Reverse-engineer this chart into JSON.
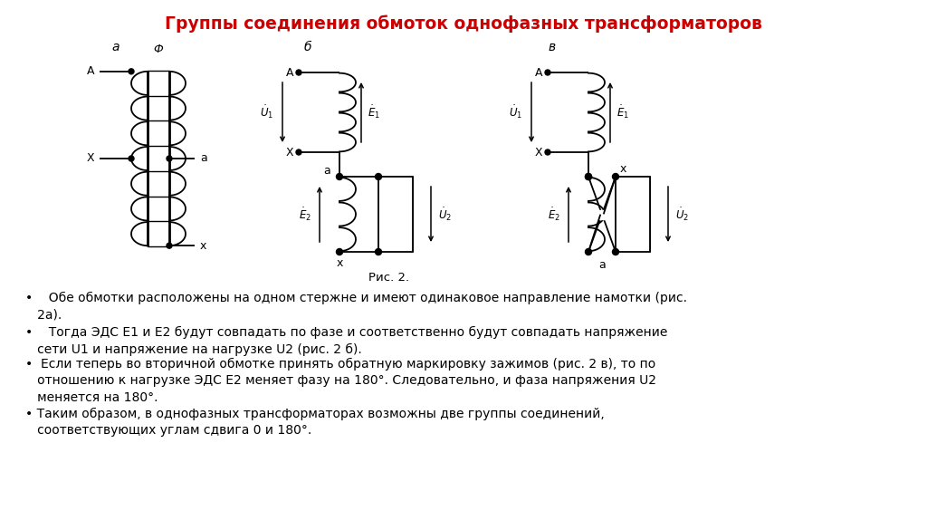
{
  "title": "Группы соединения обмоток однофазных трансформаторов",
  "title_color": "#cc0000",
  "title_fontsize": 13.5,
  "caption": "Рис. 2.",
  "bg_color": "#ffffff",
  "bullet1": "•    Обе обмотки расположены на одном стержне и имеют одинаковое направление намотки (рис.\n   2а).",
  "bullet2": "•    Тогда ЭДС E1 и E2 будут совпадать по фазе и соответственно будут совпадать напряжение\n   сети U1 и напряжение на нагрузке U2 (рис. 2 б).",
  "bullet3": "•  Если теперь во вторичной обмотке принять обратную маркировку зажимов (рис. 2 в), то по\n   отношению к нагрузке ЭДС E2 меняет фазу на 180°. Следовательно, и фаза напряжения U2\n   меняется на 180°.",
  "bullet4": "• Таким образом, в однофазных трансформаторах возможны две группы соединений,\n   соответствующих углам сдвига 0 и 180°.",
  "label_a": "а",
  "label_b": "б",
  "label_v": "в"
}
